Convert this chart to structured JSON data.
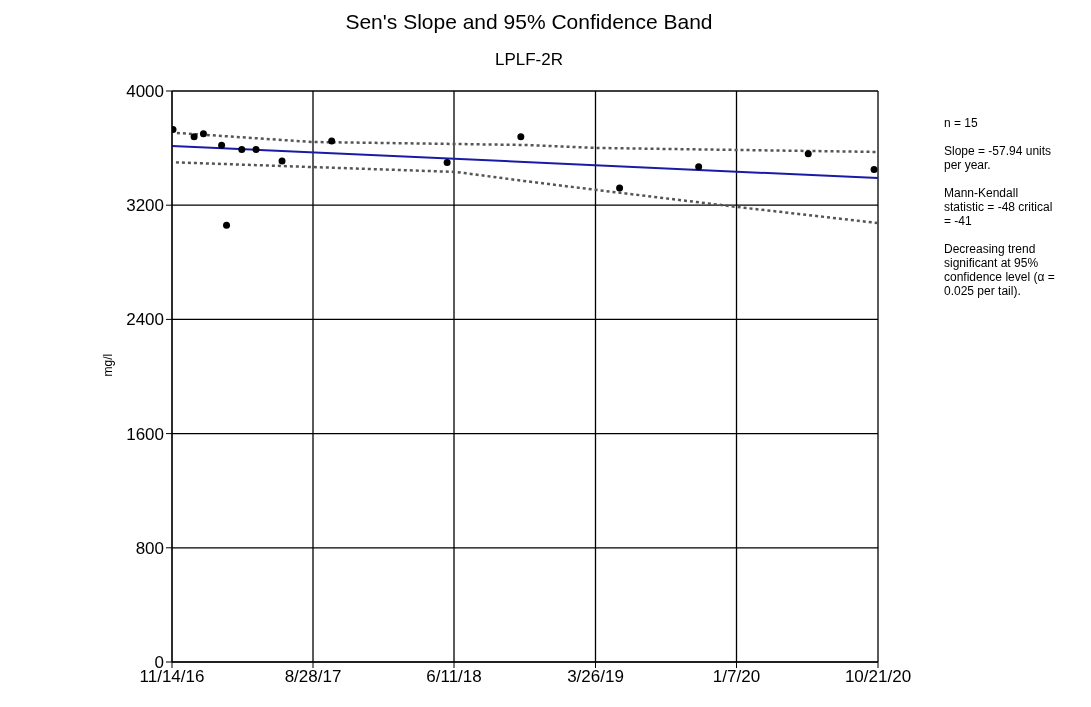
{
  "chart_data": {
    "type": "scatter",
    "title": "Sen's Slope and 95% Confidence Band",
    "subtitle": "LPLF-2R",
    "ylabel": "mg/l",
    "xlim": [
      "2016-11-14",
      "2020-10-21"
    ],
    "xticks": [
      {
        "value": "2016-11-14",
        "label": "11/14/16"
      },
      {
        "value": "2017-08-28",
        "label": "8/28/17"
      },
      {
        "value": "2018-06-11",
        "label": "6/11/18"
      },
      {
        "value": "2019-03-26",
        "label": "3/26/19"
      },
      {
        "value": "2020-01-07",
        "label": "1/7/20"
      },
      {
        "value": "2020-10-21",
        "label": "10/21/20"
      }
    ],
    "ylim": [
      0,
      4000
    ],
    "yticks": [
      0,
      800,
      1600,
      2400,
      3200,
      4000
    ],
    "grid": true,
    "series": [
      {
        "color": "#000000",
        "marker": "circle",
        "x": [
          "2016-11-16",
          "2016-12-29",
          "2017-01-17",
          "2017-02-23",
          "2017-03-05",
          "2017-04-05",
          "2017-05-04",
          "2017-06-26",
          "2017-10-05",
          "2018-05-28",
          "2018-10-25",
          "2019-05-14",
          "2019-10-22",
          "2020-06-01",
          "2020-10-13"
        ],
        "values": [
          3730,
          3680,
          3700,
          3620,
          3060,
          3590,
          3590,
          3510,
          3650,
          3500,
          3680,
          3320,
          3470,
          3560,
          3450
        ]
      },
      {
        "type": "line",
        "color": "#1a1aa6",
        "marker": "none",
        "line_style": "solid",
        "x": [
          "2016-11-14",
          "2020-10-21"
        ],
        "values": [
          3615,
          3390
        ]
      },
      {
        "type": "line",
        "color": "#555555",
        "marker": "none",
        "line_style": "dotted",
        "x": [
          "2016-11-24",
          "2017-08-25",
          "2018-10-31",
          "2019-03-30",
          "2020-10-21"
        ],
        "values": [
          3706,
          3643,
          3622,
          3601,
          3573
        ]
      },
      {
        "type": "line",
        "color": "#555555",
        "marker": "none",
        "line_style": "dotted",
        "x": [
          "2016-11-22",
          "2017-08-29",
          "2018-06-15",
          "2018-10-31",
          "2019-03-30",
          "2020-01-10",
          "2020-10-21"
        ],
        "values": [
          3500,
          3467,
          3433,
          3370,
          3306,
          3187,
          3075
        ]
      }
    ],
    "annotations": [
      "n = 15",
      "Slope = -57.94 units per year.",
      "Mann-Kendall statistic = -48 critical = -41",
      "Decreasing trend significant at 95% confidence level (α = 0.025 per tail)."
    ]
  }
}
